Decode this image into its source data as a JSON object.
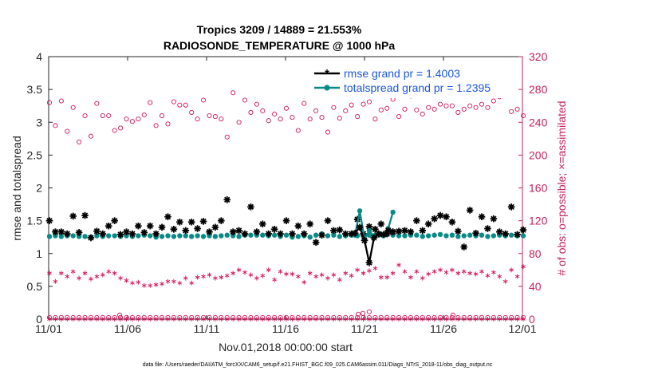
{
  "chart_data": {
    "type": "line",
    "title_line1": "Tropics 3209 / 14889 = 21.553%",
    "title_line2": "RADIOSONDE_TEMPERATURE @ 1000 hPa",
    "xlabel": "Nov.01,2018 00:00:00 start",
    "ylabel_left": "rmse and totalspread",
    "ylabel_right": "# of obs: o=possible; ×=assimilated",
    "footer": "data file: /Users/raeder/DAI/ATM_forcXX/CAM6_setup/f.e21.FHIST_BGC.f09_025.CAM6assim.011/Diags_NTrS_2018-11/obs_diag_output.nc",
    "xlim": [
      0,
      30
    ],
    "ylim_left": [
      0,
      4
    ],
    "ylim_right": [
      0,
      320
    ],
    "x_ticks": [
      0,
      5,
      10,
      15,
      20,
      25,
      30
    ],
    "x_tick_labels": [
      "11/01",
      "11/06",
      "11/11",
      "11/16",
      "11/21",
      "11/26",
      "12/01"
    ],
    "y_ticks_left": [
      0,
      0.5,
      1,
      1.5,
      2,
      2.5,
      3,
      3.5,
      4
    ],
    "y_tick_labels_left": [
      "0",
      "0.5",
      "1",
      "1.5",
      "2",
      "2.5",
      "3",
      "3.5",
      "4"
    ],
    "y_ticks_right": [
      0,
      40,
      80,
      120,
      160,
      200,
      240,
      280,
      320
    ],
    "y_tick_labels_right": [
      "0",
      "40",
      "80",
      "120",
      "160",
      "200",
      "240",
      "280",
      "320"
    ],
    "colors": {
      "rmse": "#000000",
      "spread": "#0a8a86",
      "obs": "#d4145a",
      "legend_text": "#1a56e0"
    },
    "legend": [
      "rmse grand pr = 1.4003",
      "totalspread grand pr = 1.2395"
    ],
    "series": [
      {
        "name": "rmse",
        "axis": "left",
        "style": "markers",
        "marker": "star",
        "values": [
          1.5,
          1.33,
          1.33,
          1.3,
          1.57,
          1.32,
          1.58,
          1.24,
          1.34,
          1.3,
          1.42,
          1.5,
          1.29,
          1.33,
          1.3,
          1.42,
          1.32,
          1.42,
          1.3,
          1.4,
          1.56,
          1.37,
          1.48,
          1.35,
          1.48,
          1.38,
          1.49,
          1.33,
          1.4,
          1.5,
          1.82,
          1.33,
          1.35,
          1.3,
          1.71,
          1.33,
          1.45,
          1.3,
          1.37,
          1.3,
          1.5,
          1.3,
          1.42,
          1.3,
          1.45,
          1.17,
          1.28,
          1.5,
          1.35,
          1.36,
          1.3,
          1.3,
          1.52,
          1.3,
          1.41,
          1.37,
          1.45,
          1.3,
          1.33,
          1.34,
          1.35,
          1.33,
          1.5,
          1.35,
          1.45,
          1.53,
          1.58,
          1.56,
          1.48,
          1.34,
          1.1,
          1.66,
          1.31,
          1.56,
          1.38,
          1.53,
          1.33,
          1.3,
          1.71,
          1.29,
          1.36
        ]
      },
      {
        "name": "totalspread",
        "axis": "left",
        "style": "markers",
        "marker": "dot",
        "values": [
          1.26,
          1.27,
          1.26,
          1.27,
          1.27,
          1.26,
          1.26,
          1.25,
          1.27,
          1.26,
          1.27,
          1.27,
          1.26,
          1.27,
          1.26,
          1.27,
          1.28,
          1.27,
          1.25,
          1.26,
          1.27,
          1.26,
          1.27,
          1.27,
          1.26,
          1.27,
          1.26,
          1.27,
          1.26,
          1.27,
          1.28,
          1.27,
          1.26,
          1.28,
          1.28,
          1.28,
          1.28,
          1.27,
          1.28,
          1.26,
          1.28,
          1.25,
          1.26,
          1.27,
          1.25,
          1.28,
          1.3,
          1.27,
          1.28,
          1.26,
          1.27,
          1.28,
          1.27,
          1.26,
          1.28,
          1.28,
          1.29,
          1.29,
          1.28,
          1.27,
          1.27,
          1.28,
          1.28,
          1.26,
          1.27,
          1.28,
          1.29,
          1.27,
          1.28,
          1.26,
          1.27,
          1.28,
          1.27,
          1.28,
          1.26,
          1.27,
          1.28,
          1.27,
          1.28,
          1.27,
          1.27
        ]
      },
      {
        "name": "rmse_gap_segment",
        "axis": "left",
        "style": "line",
        "x": [
          19.4,
          19.7,
          20.0,
          20.3,
          20.6,
          20.9,
          21.2,
          21.5,
          21.8
        ],
        "values": [
          1.31,
          1.4,
          1.2,
          0.86,
          1.24,
          1.3,
          1.29,
          1.35,
          1.33
        ]
      },
      {
        "name": "totalspread_gap_segment",
        "axis": "left",
        "style": "line",
        "x": [
          19.4,
          19.7,
          20.0,
          20.3,
          20.6,
          20.9,
          21.2,
          21.5,
          21.8
        ],
        "values": [
          1.28,
          1.65,
          1.22,
          1.35,
          1.26,
          1.28,
          1.27,
          1.38,
          1.63
        ]
      },
      {
        "name": "obs_possible",
        "axis": "right",
        "style": "markers",
        "marker": "circle",
        "values": [
          264,
          236,
          266,
          229,
          258,
          216,
          248,
          223,
          263,
          248,
          248,
          230,
          233,
          244,
          241,
          244,
          249,
          264,
          236,
          248,
          238,
          265,
          261,
          261,
          252,
          244,
          267,
          248,
          247,
          244,
          222,
          276,
          240,
          267,
          252,
          262,
          254,
          242,
          250,
          244,
          257,
          246,
          230,
          263,
          244,
          254,
          246,
          228,
          258,
          245,
          254,
          261,
          247,
          262,
          265,
          244,
          255,
          257,
          268,
          247,
          256,
          272,
          255,
          250,
          258,
          256,
          262,
          260,
          260,
          252,
          256,
          260,
          258,
          262,
          258,
          266,
          271,
          274,
          253,
          256,
          248
        ]
      },
      {
        "name": "obs_assimilated",
        "axis": "right",
        "style": "markers",
        "marker": "asterisk",
        "values": [
          56,
          46,
          56,
          52,
          58,
          50,
          56,
          49,
          52,
          54,
          58,
          56,
          50,
          47,
          44,
          45,
          41,
          41,
          42,
          43,
          46,
          46,
          44,
          50,
          44,
          51,
          52,
          54,
          50,
          51,
          53,
          56,
          60,
          57,
          54,
          50,
          53,
          60,
          48,
          58,
          55,
          55,
          52,
          45,
          56,
          52,
          54,
          50,
          54,
          48,
          56,
          53,
          60,
          56,
          59,
          62,
          51,
          51,
          56,
          66,
          58,
          51,
          58,
          50,
          55,
          58,
          60,
          57,
          60,
          56,
          58,
          56,
          55,
          58,
          53,
          57,
          52,
          46,
          60,
          52,
          64
        ]
      },
      {
        "name": "obs_possible_baseline",
        "axis": "right",
        "style": "markers",
        "marker": "circle",
        "values": [
          2,
          2,
          2,
          2,
          2,
          2,
          2,
          2,
          2,
          2,
          2,
          2,
          2,
          2,
          2,
          2,
          2,
          2,
          2,
          2,
          2,
          2,
          2,
          2,
          2,
          2,
          2,
          2,
          2,
          2,
          2,
          2,
          2,
          2,
          2,
          2,
          2,
          2,
          2,
          2,
          2,
          2,
          2,
          2,
          2,
          2,
          2,
          2,
          2,
          2,
          2,
          2,
          2,
          2,
          2,
          2,
          2,
          2,
          2,
          2,
          2,
          2,
          2,
          2,
          2,
          2,
          2,
          2,
          2,
          2,
          2,
          2,
          2,
          2,
          2,
          2,
          2,
          2,
          2,
          2,
          2
        ]
      },
      {
        "name": "obs_assimilated_baseline",
        "axis": "right",
        "style": "markers",
        "marker": "asterisk",
        "values": [
          0,
          0,
          0,
          0,
          0,
          0,
          0,
          0,
          0,
          0,
          0,
          0,
          0,
          0,
          0,
          0,
          0,
          0,
          0,
          0,
          0,
          0,
          0,
          0,
          0,
          0,
          0,
          0,
          0,
          0,
          0,
          0,
          0,
          0,
          0,
          0,
          0,
          0,
          0,
          0,
          0,
          0,
          0,
          0,
          0,
          0,
          0,
          0,
          0,
          0,
          0,
          0,
          0,
          0,
          0,
          0,
          0,
          0,
          0,
          0,
          0,
          0,
          0,
          0,
          0,
          0,
          0,
          0,
          0,
          0,
          0,
          0,
          0,
          0,
          0,
          0,
          0,
          0,
          0,
          0,
          0
        ]
      },
      {
        "name": "obs_possible_spikes",
        "axis": "right",
        "style": "markers",
        "marker": "circle",
        "x": [
          4.5,
          19.6,
          19.9,
          20.3,
          25.6
        ],
        "values": [
          5,
          6,
          7,
          9,
          5
        ]
      }
    ]
  }
}
